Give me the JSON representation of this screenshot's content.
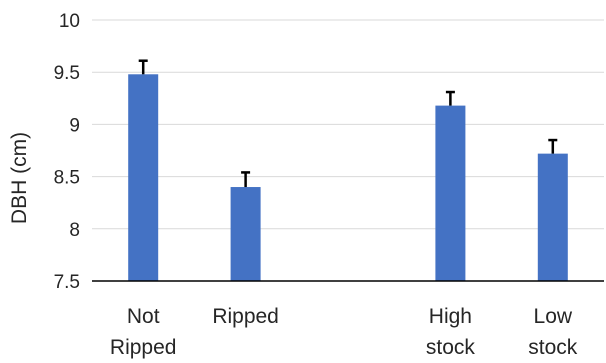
{
  "chart_data": {
    "type": "bar",
    "categories": [
      [
        "Not",
        "Ripped"
      ],
      [
        "Ripped"
      ],
      [],
      [
        "High",
        "stock"
      ],
      [
        "Low",
        "stock"
      ]
    ],
    "values": [
      9.48,
      8.4,
      null,
      9.18,
      8.72
    ],
    "errors": [
      0.13,
      0.14,
      null,
      0.13,
      0.13
    ],
    "ylabel": "DBH (cm)",
    "ylim": [
      7.5,
      10
    ],
    "yticks": [
      "7.5",
      "8",
      "8.5",
      "9",
      "9.5",
      "10"
    ],
    "grid": true,
    "legend": "none",
    "colors": {
      "bar": "#4472C4",
      "grid": "#D9D9D9",
      "axis": "#000000",
      "error": "#000000"
    }
  }
}
